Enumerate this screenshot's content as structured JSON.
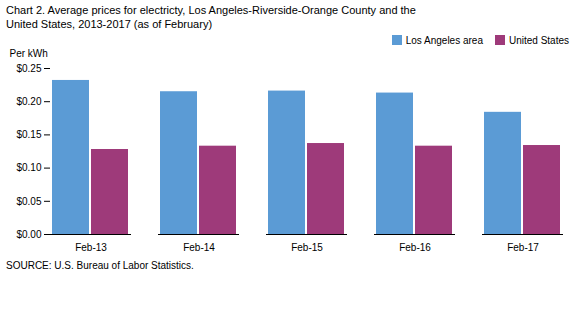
{
  "chart_data": {
    "type": "bar",
    "title": "Chart 2. Average prices for electricty, Los Angeles-Riverside-Orange County and the\nUnited States, 2013-2017  (as of February)",
    "ylabel": "Per kWh",
    "annotations": [
      "SOURCE: U.S. Bureau of Labor Statistics."
    ],
    "categories": [
      "Feb-13",
      "Feb-14",
      "Feb-15",
      "Feb-16",
      "Feb-17"
    ],
    "series": [
      {
        "name": "Los Angeles area",
        "color": "#5B9BD5",
        "values": [
          0.232,
          0.215,
          0.216,
          0.213,
          0.184
        ]
      },
      {
        "name": "United States",
        "color": "#9E3A7A",
        "values": [
          0.128,
          0.133,
          0.137,
          0.133,
          0.134
        ]
      }
    ],
    "ylim": [
      0,
      0.25
    ],
    "yticks": [
      {
        "value": 0.0,
        "label": "$0.00"
      },
      {
        "value": 0.05,
        "label": "$0.05"
      },
      {
        "value": 0.1,
        "label": "$0.10"
      },
      {
        "value": 0.15,
        "label": "$0.15"
      },
      {
        "value": 0.2,
        "label": "$0.20"
      },
      {
        "value": 0.25,
        "label": "$0.25"
      }
    ],
    "grid": false,
    "legend": "upper right"
  }
}
